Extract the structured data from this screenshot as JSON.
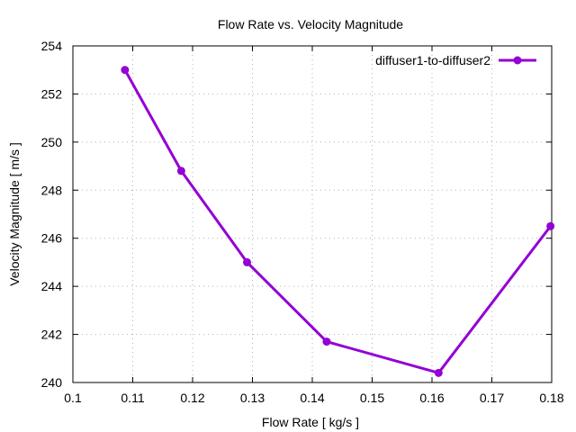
{
  "chart_data": {
    "type": "line",
    "title": "Flow Rate vs. Velocity Magnitude",
    "xlabel": "Flow Rate [ kg/s ]",
    "ylabel": "Velocity Magnitude [ m/s ]",
    "xlim": [
      0.1,
      0.18
    ],
    "ylim": [
      240,
      254
    ],
    "xticks": [
      0.1,
      0.11,
      0.12,
      0.13,
      0.14,
      0.15,
      0.16,
      0.17,
      0.18
    ],
    "xtick_labels": [
      "0.1",
      "0.11",
      "0.12",
      "0.13",
      "0.14",
      "0.15",
      "0.16",
      "0.17",
      "0.18"
    ],
    "yticks": [
      240,
      242,
      244,
      246,
      248,
      250,
      252,
      254
    ],
    "ytick_labels": [
      "240",
      "242",
      "244",
      "246",
      "248",
      "250",
      "252",
      "254"
    ],
    "grid": true,
    "legend_position": "top-right",
    "series": [
      {
        "name": "diffuser1-to-diffuser2",
        "color": "#9400d3",
        "marker": "circle",
        "x": [
          0.1087,
          0.1181,
          0.1291,
          0.1424,
          0.1611,
          0.1798
        ],
        "y": [
          253.0,
          248.8,
          245.0,
          241.7,
          240.4,
          246.5
        ]
      }
    ]
  }
}
